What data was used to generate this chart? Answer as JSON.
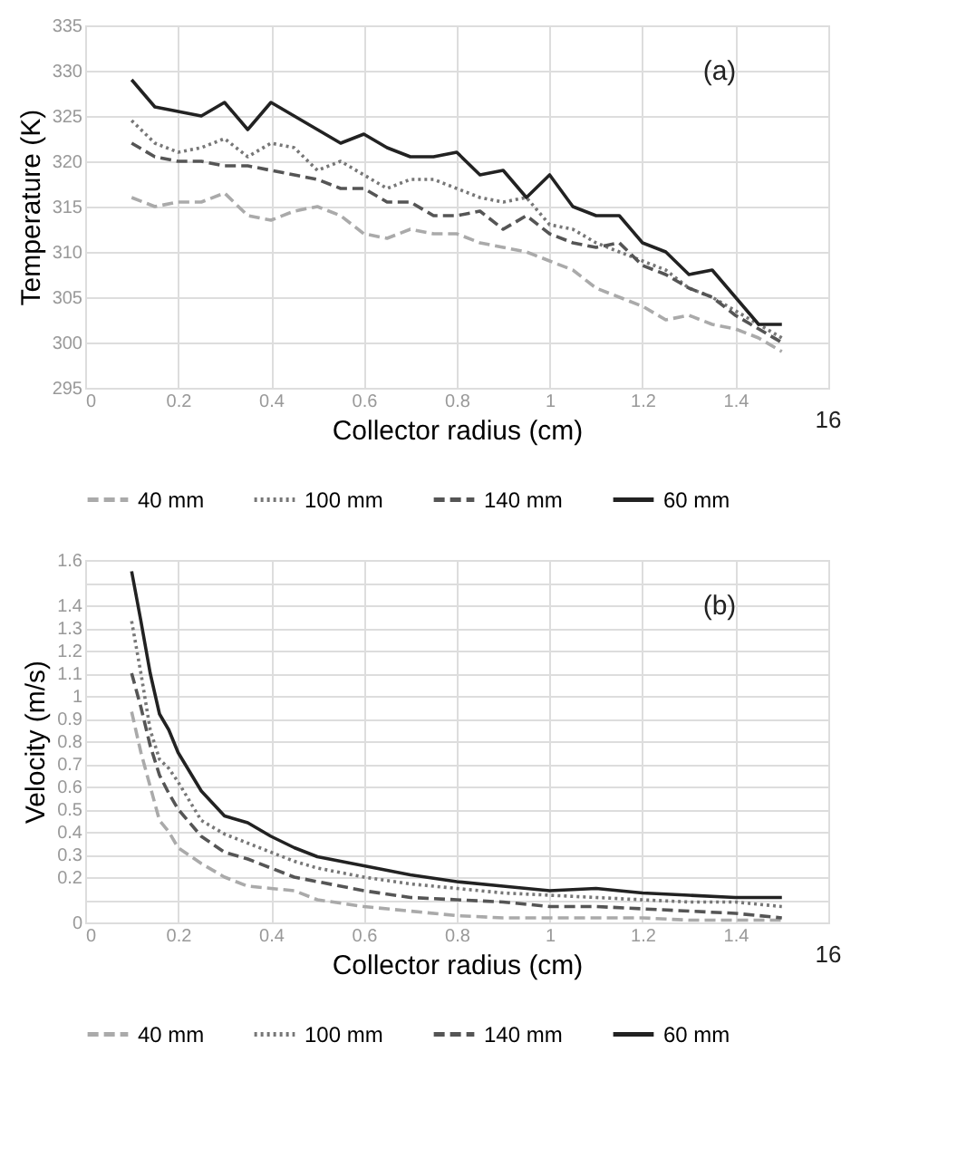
{
  "chart_data": [
    {
      "type": "line",
      "xlabel": "Collector radius (cm)",
      "ylabel": "Temperature (K)",
      "xlim": [
        0,
        1.6
      ],
      "xticks": [
        0,
        0.2,
        0.4,
        0.6,
        0.8,
        1,
        1.2,
        1.4
      ],
      "ylim": [
        295,
        335
      ],
      "yticks": [
        295,
        300,
        305,
        310,
        315,
        320,
        325,
        330,
        335
      ],
      "grid": true,
      "legend": "bottom",
      "annotations": [
        "(a)",
        "16"
      ],
      "series": [
        {
          "name": "40 mm",
          "color": "#aaaaaa",
          "line_style": "dashed",
          "x": [
            0.1,
            0.15,
            0.2,
            0.25,
            0.3,
            0.35,
            0.4,
            0.45,
            0.5,
            0.55,
            0.6,
            0.65,
            0.7,
            0.75,
            0.8,
            0.85,
            0.9,
            0.95,
            1.0,
            1.05,
            1.1,
            1.15,
            1.2,
            1.25,
            1.3,
            1.35,
            1.4,
            1.45,
            1.5
          ],
          "values": [
            316,
            315,
            315.5,
            315.5,
            316.5,
            314,
            313.5,
            314.5,
            315,
            314,
            312,
            311.5,
            312.5,
            312,
            312,
            311,
            310.5,
            310,
            309,
            308,
            306,
            305,
            304,
            302.5,
            303,
            302,
            301.5,
            300.5,
            299
          ]
        },
        {
          "name": "100 mm",
          "color": "#777777",
          "line_style": "dotted",
          "x": [
            0.1,
            0.15,
            0.2,
            0.25,
            0.3,
            0.35,
            0.4,
            0.45,
            0.5,
            0.55,
            0.6,
            0.65,
            0.7,
            0.75,
            0.8,
            0.85,
            0.9,
            0.95,
            1.0,
            1.05,
            1.1,
            1.15,
            1.2,
            1.25,
            1.3,
            1.35,
            1.4,
            1.45,
            1.5
          ],
          "values": [
            324.5,
            322,
            321,
            321.5,
            322.5,
            320.5,
            322,
            321.5,
            319,
            320,
            318.5,
            317,
            318,
            318,
            317,
            316,
            315.5,
            316,
            313,
            312.5,
            311,
            310,
            309,
            308,
            306,
            305,
            303.5,
            302,
            300.5
          ]
        },
        {
          "name": "140 mm",
          "color": "#555555",
          "line_style": "dashed",
          "x": [
            0.1,
            0.15,
            0.2,
            0.25,
            0.3,
            0.35,
            0.4,
            0.45,
            0.5,
            0.55,
            0.6,
            0.65,
            0.7,
            0.75,
            0.8,
            0.85,
            0.9,
            0.95,
            1.0,
            1.05,
            1.1,
            1.15,
            1.2,
            1.25,
            1.3,
            1.35,
            1.4,
            1.45,
            1.5
          ],
          "values": [
            322,
            320.5,
            320,
            320,
            319.5,
            319.5,
            319,
            318.5,
            318,
            317,
            317,
            315.5,
            315.5,
            314,
            314,
            314.5,
            312.5,
            314,
            312,
            311,
            310.5,
            311,
            308.5,
            307.5,
            306,
            305,
            303,
            301.5,
            300
          ]
        },
        {
          "name": "60 mm",
          "color": "#222222",
          "line_style": "solid",
          "x": [
            0.1,
            0.15,
            0.2,
            0.25,
            0.3,
            0.35,
            0.4,
            0.45,
            0.5,
            0.55,
            0.6,
            0.65,
            0.7,
            0.75,
            0.8,
            0.85,
            0.9,
            0.95,
            1.0,
            1.05,
            1.1,
            1.15,
            1.2,
            1.25,
            1.3,
            1.35,
            1.4,
            1.45,
            1.5
          ],
          "values": [
            329,
            326,
            325.5,
            325,
            326.5,
            323.5,
            326.5,
            325,
            323.5,
            322,
            323,
            321.5,
            320.5,
            320.5,
            321,
            318.5,
            319,
            316,
            318.5,
            315,
            314,
            314,
            311,
            310,
            307.5,
            308,
            305,
            302,
            302
          ]
        }
      ]
    },
    {
      "type": "line",
      "xlabel": "Collector radius (cm)",
      "ylabel": "Velocity (m/s)",
      "xlim": [
        0,
        1.6
      ],
      "xticks": [
        0,
        0.2,
        0.4,
        0.6,
        0.8,
        1,
        1.2,
        1.4
      ],
      "ylim": [
        0,
        1.6
      ],
      "yticks": [
        0,
        {
          "value": 0.1,
          "label": null
        },
        0.2,
        0.3,
        0.4,
        0.5,
        0.6,
        0.7,
        0.8,
        0.9,
        1,
        1.1,
        1.2,
        1.3,
        1.4,
        {
          "value": 1.5,
          "label": null
        },
        1.6
      ],
      "grid": true,
      "legend": "bottom",
      "annotations": [
        "(b)",
        "16"
      ],
      "series": [
        {
          "name": "40 mm",
          "color": "#aaaaaa",
          "line_style": "dashed",
          "x": [
            0.1,
            0.12,
            0.14,
            0.16,
            0.18,
            0.2,
            0.25,
            0.3,
            0.35,
            0.4,
            0.45,
            0.5,
            0.6,
            0.7,
            0.8,
            0.9,
            1.0,
            1.1,
            1.2,
            1.3,
            1.4,
            1.5
          ],
          "values": [
            0.93,
            0.75,
            0.6,
            0.45,
            0.4,
            0.33,
            0.26,
            0.2,
            0.16,
            0.15,
            0.14,
            0.1,
            0.07,
            0.05,
            0.03,
            0.02,
            0.02,
            0.02,
            0.02,
            0.01,
            0.01,
            0.01
          ]
        },
        {
          "name": "100 mm",
          "color": "#777777",
          "line_style": "dotted",
          "x": [
            0.1,
            0.12,
            0.14,
            0.16,
            0.18,
            0.2,
            0.25,
            0.3,
            0.35,
            0.4,
            0.45,
            0.5,
            0.6,
            0.7,
            0.8,
            0.9,
            1.0,
            1.1,
            1.2,
            1.3,
            1.4,
            1.5
          ],
          "values": [
            1.33,
            1.1,
            0.85,
            0.72,
            0.68,
            0.62,
            0.45,
            0.39,
            0.35,
            0.31,
            0.27,
            0.24,
            0.2,
            0.17,
            0.15,
            0.13,
            0.12,
            0.11,
            0.1,
            0.09,
            0.09,
            0.07
          ]
        },
        {
          "name": "140 mm",
          "color": "#555555",
          "line_style": "dashed",
          "x": [
            0.1,
            0.12,
            0.14,
            0.16,
            0.18,
            0.2,
            0.25,
            0.3,
            0.35,
            0.4,
            0.45,
            0.5,
            0.6,
            0.7,
            0.8,
            0.9,
            1.0,
            1.1,
            1.2,
            1.3,
            1.4,
            1.5
          ],
          "values": [
            1.1,
            0.95,
            0.78,
            0.65,
            0.57,
            0.5,
            0.38,
            0.31,
            0.28,
            0.24,
            0.2,
            0.18,
            0.14,
            0.11,
            0.1,
            0.09,
            0.07,
            0.07,
            0.06,
            0.05,
            0.04,
            0.02
          ]
        },
        {
          "name": "60 mm",
          "color": "#222222",
          "line_style": "solid",
          "x": [
            0.1,
            0.12,
            0.14,
            0.16,
            0.18,
            0.2,
            0.25,
            0.3,
            0.35,
            0.4,
            0.45,
            0.5,
            0.6,
            0.7,
            0.8,
            0.9,
            1.0,
            1.1,
            1.2,
            1.3,
            1.4,
            1.5
          ],
          "values": [
            1.55,
            1.33,
            1.1,
            0.92,
            0.85,
            0.75,
            0.58,
            0.47,
            0.44,
            0.38,
            0.33,
            0.29,
            0.25,
            0.21,
            0.18,
            0.16,
            0.14,
            0.15,
            0.13,
            0.12,
            0.11,
            0.11
          ]
        }
      ]
    }
  ]
}
